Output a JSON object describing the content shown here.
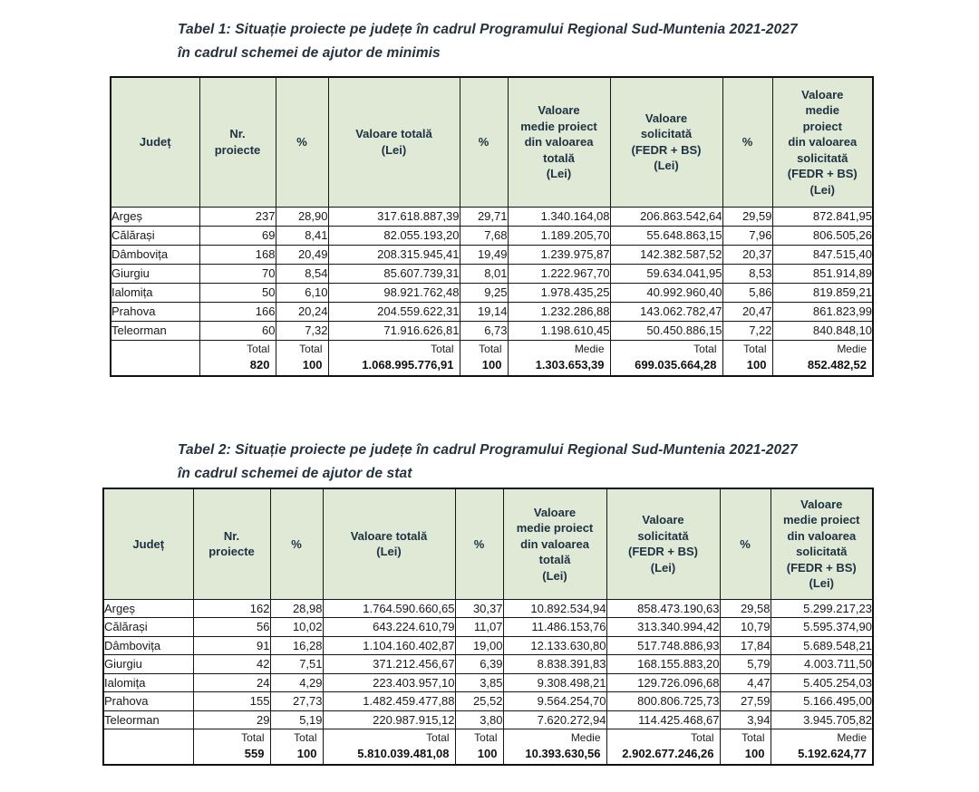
{
  "colors": {
    "header_bg": "#dfe9d6",
    "header_text": "#1e3140",
    "title_text": "#26323e",
    "body_text": "#191919",
    "border": "#151515"
  },
  "tables": [
    {
      "name": "minimis-table",
      "title_line1": "Tabel 1: Situație proiecte pe județe în cadrul Programului Regional Sud-Muntenia 2021-2027",
      "title_line2": "în cadrul schemei de ajutor de minimis",
      "columns": [
        "Județ",
        "Nr.\nproiecte",
        "%",
        "Valoare totală\n(Lei)",
        "%",
        "Valoare\nmedie proiect\ndin valoarea\ntotală\n(Lei)",
        "Valoare\nsolicitată\n(FEDR + BS)\n(Lei)",
        "%",
        "Valoare\nmedie\nproiect\ndin valoarea\nsolicitată\n(FEDR + BS)\n(Lei)"
      ],
      "rows": [
        [
          "Argeș",
          "237",
          "28,90",
          "317.618.887,39",
          "29,71",
          "1.340.164,08",
          "206.863.542,64",
          "29,59",
          "872.841,95"
        ],
        [
          "Călărași",
          "69",
          "8,41",
          "82.055.193,20",
          "7,68",
          "1.189.205,70",
          "55.648.863,15",
          "7,96",
          "806.505,26"
        ],
        [
          "Dâmbovița",
          "168",
          "20,49",
          "208.315.945,41",
          "19,49",
          "1.239.975,87",
          "142.382.587,52",
          "20,37",
          "847.515,40"
        ],
        [
          "Giurgiu",
          "70",
          "8,54",
          "85.607.739,31",
          "8,01",
          "1.222.967,70",
          "59.634.041,95",
          "8,53",
          "851.914,89"
        ],
        [
          "Ialomița",
          "50",
          "6,10",
          "98.921.762,48",
          "9,25",
          "1.978.435,25",
          "40.992.960,40",
          "5,86",
          "819.859,21"
        ],
        [
          "Prahova",
          "166",
          "20,24",
          "204.559.622,31",
          "19,14",
          "1.232.286,88",
          "143.062.782,47",
          "20,47",
          "861.823,99"
        ],
        [
          "Teleorman",
          "60",
          "7,32",
          "71.916.626,81",
          "6,73",
          "1.198.610,45",
          "50.450.886,15",
          "7,22",
          "840.848,10"
        ]
      ],
      "total_labels": [
        "",
        "Total",
        "Total",
        "Total",
        "Total",
        "Medie",
        "Total",
        "Total",
        "Medie"
      ],
      "total_values": [
        "",
        "820",
        "100",
        "1.068.995.776,91",
        "100",
        "1.303.653,39",
        "699.035.664,28",
        "100",
        "852.482,52"
      ]
    },
    {
      "name": "stat-table",
      "title_line1": "Tabel 2: Situație proiecte pe județe în cadrul Programului Regional Sud-Muntenia 2021-2027",
      "title_line2": "în cadrul schemei de ajutor de stat",
      "columns": [
        "Județ",
        "Nr.\nproiecte",
        "%",
        "Valoare totală\n(Lei)",
        "%",
        "Valoare\nmedie proiect\ndin valoarea\ntotală\n(Lei)",
        "Valoare\nsolicitată\n(FEDR + BS)\n(Lei)",
        "%",
        "Valoare\nmedie proiect\ndin valoarea\nsolicitată\n(FEDR + BS)\n(Lei)"
      ],
      "rows": [
        [
          "Argeș",
          "162",
          "28,98",
          "1.764.590.660,65",
          "30,37",
          "10.892.534,94",
          "858.473.190,63",
          "29,58",
          "5.299.217,23"
        ],
        [
          "Călărași",
          "56",
          "10,02",
          "643.224.610,79",
          "11,07",
          "11.486.153,76",
          "313.340.994,42",
          "10,79",
          "5.595.374,90"
        ],
        [
          "Dâmbovița",
          "91",
          "16,28",
          "1.104.160.402,87",
          "19,00",
          "12.133.630,80",
          "517.748.886,93",
          "17,84",
          "5.689.548,21"
        ],
        [
          "Giurgiu",
          "42",
          "7,51",
          "371.212.456,67",
          "6,39",
          "8.838.391,83",
          "168.155.883,20",
          "5,79",
          "4.003.711,50"
        ],
        [
          "Ialomița",
          "24",
          "4,29",
          "223.403.957,10",
          "3,85",
          "9.308.498,21",
          "129.726.096,68",
          "4,47",
          "5.405.254,03"
        ],
        [
          "Prahova",
          "155",
          "27,73",
          "1.482.459.477,88",
          "25,52",
          "9.564.254,70",
          "800.806.725,73",
          "27,59",
          "5.166.495,00"
        ],
        [
          "Teleorman",
          "29",
          "5,19",
          "220.987.915,12",
          "3,80",
          "7.620.272,94",
          "114.425.468,67",
          "3,94",
          "3.945.705,82"
        ]
      ],
      "total_labels": [
        "",
        "Total",
        "Total",
        "Total",
        "Total",
        "Medie",
        "Total",
        "Total",
        "Medie"
      ],
      "total_values": [
        "",
        "559",
        "100",
        "5.810.039.481,08",
        "100",
        "10.393.630,56",
        "2.902.677.246,26",
        "100",
        "5.192.624,77"
      ]
    }
  ]
}
